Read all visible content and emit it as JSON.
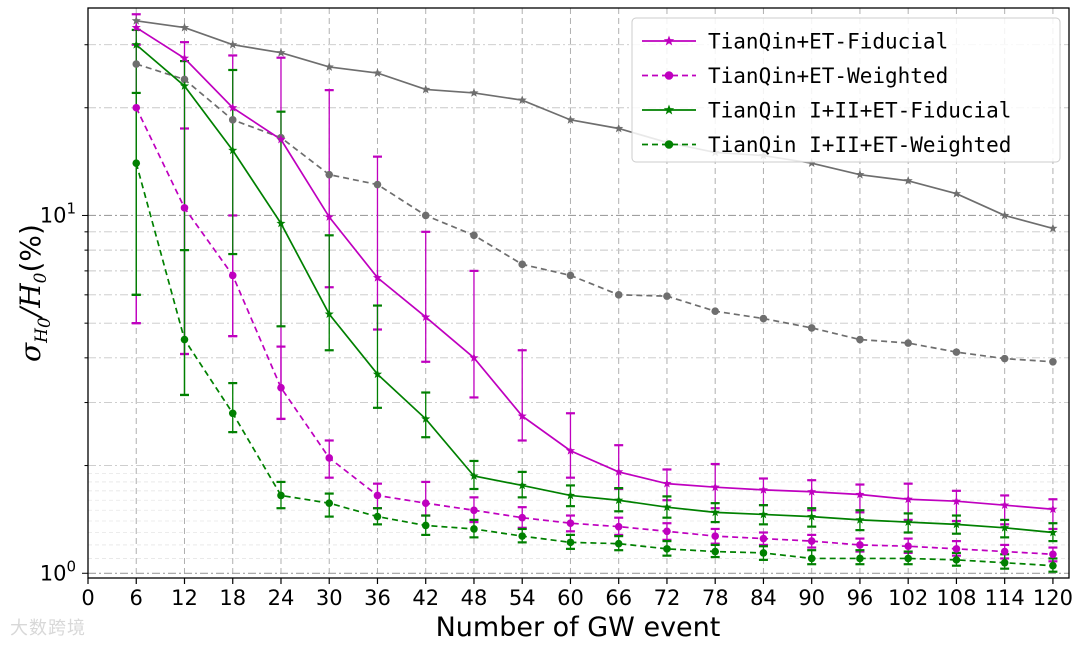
{
  "chart_data": {
    "type": "line",
    "y_scale": "log",
    "xlabel": "Number of GW event",
    "ylabel": {
      "symbol": "σ",
      "sub": "H",
      "subsub": "0",
      "rest": "/",
      "h": "H",
      "hsub": "0",
      "unit": "(%)"
    },
    "xlim": [
      0,
      122
    ],
    "ylim": [
      0.97,
      38
    ],
    "x_ticks": [
      0,
      6,
      12,
      18,
      24,
      30,
      36,
      42,
      48,
      54,
      60,
      66,
      72,
      78,
      84,
      90,
      96,
      102,
      108,
      114,
      120
    ],
    "y_ticks": [
      {
        "value": 1,
        "base": "10",
        "exp": "0"
      },
      {
        "value": 10,
        "base": "10",
        "exp": "1"
      }
    ],
    "grid": true,
    "legend_position": "top-right",
    "x": [
      6,
      12,
      18,
      24,
      30,
      36,
      42,
      48,
      54,
      60,
      66,
      72,
      78,
      84,
      90,
      96,
      102,
      108,
      114,
      120
    ],
    "series": [
      {
        "name": "TianQin+ET-Fiducial",
        "color": "#bf00bf",
        "style": "solid",
        "marker": "star",
        "legend": true,
        "values": [
          33.5,
          27.5,
          20.0,
          16.3,
          9.9,
          6.7,
          5.2,
          4.0,
          2.75,
          2.2,
          1.92,
          1.78,
          1.74,
          1.71,
          1.69,
          1.66,
          1.61,
          1.59,
          1.55,
          1.51
        ],
        "err_low": [
          5.0,
          4.1,
          4.6,
          2.7,
          6.3,
          4.8,
          3.9,
          3.1,
          2.35,
          1.85,
          1.72,
          1.6,
          1.52,
          1.55,
          1.5,
          1.48,
          1.41,
          1.4,
          1.37,
          1.33
        ],
        "err_high": [
          36.5,
          30.5,
          28.0,
          27.6,
          22.4,
          14.6,
          9.0,
          7.0,
          4.2,
          2.8,
          2.28,
          1.95,
          2.02,
          1.84,
          1.82,
          1.77,
          1.78,
          1.7,
          1.65,
          1.61
        ]
      },
      {
        "name": "TianQin+ET-Weighted",
        "color": "#bf00bf",
        "style": "dashed",
        "marker": "circle",
        "legend": true,
        "values": [
          20.0,
          10.5,
          6.8,
          3.3,
          2.1,
          1.65,
          1.57,
          1.5,
          1.43,
          1.38,
          1.35,
          1.31,
          1.27,
          1.25,
          1.23,
          1.2,
          1.19,
          1.17,
          1.15,
          1.13
        ],
        "err_low": [
          5.0,
          4.1,
          4.6,
          2.7,
          1.85,
          1.52,
          1.45,
          1.39,
          1.34,
          1.31,
          1.28,
          1.24,
          1.21,
          1.2,
          1.18,
          1.15,
          1.14,
          1.12,
          1.1,
          1.08
        ],
        "err_high": [
          30.0,
          17.5,
          10.0,
          4.3,
          2.35,
          1.78,
          1.8,
          1.63,
          1.53,
          1.45,
          1.43,
          1.38,
          1.33,
          1.3,
          1.28,
          1.25,
          1.25,
          1.23,
          1.2,
          1.18
        ]
      },
      {
        "name": "TianQin I+II+ET-Fiducial",
        "color": "#008000",
        "style": "solid",
        "marker": "star",
        "legend": true,
        "values": [
          30.0,
          23.0,
          15.2,
          9.5,
          5.3,
          3.6,
          2.7,
          1.87,
          1.76,
          1.65,
          1.6,
          1.53,
          1.48,
          1.46,
          1.44,
          1.41,
          1.39,
          1.37,
          1.34,
          1.3
        ],
        "err_low": [
          6.0,
          3.15,
          7.8,
          4.9,
          4.2,
          2.9,
          2.4,
          1.72,
          1.63,
          1.54,
          1.49,
          1.43,
          1.39,
          1.37,
          1.35,
          1.32,
          1.3,
          1.29,
          1.26,
          1.23
        ],
        "err_high": [
          33.0,
          27.0,
          25.5,
          19.5,
          8.8,
          5.6,
          3.2,
          2.06,
          1.92,
          1.76,
          1.73,
          1.64,
          1.57,
          1.55,
          1.52,
          1.5,
          1.47,
          1.45,
          1.41,
          1.38
        ]
      },
      {
        "name": "TianQin I+II+ET-Weighted",
        "color": "#008000",
        "style": "dashed",
        "marker": "circle",
        "legend": true,
        "values": [
          14.0,
          4.5,
          2.8,
          1.65,
          1.57,
          1.44,
          1.36,
          1.33,
          1.27,
          1.22,
          1.21,
          1.17,
          1.15,
          1.14,
          1.1,
          1.1,
          1.1,
          1.09,
          1.07,
          1.05
        ],
        "err_low": [
          6.0,
          3.15,
          2.48,
          1.52,
          1.44,
          1.37,
          1.28,
          1.26,
          1.22,
          1.17,
          1.16,
          1.12,
          1.11,
          1.09,
          1.06,
          1.06,
          1.06,
          1.05,
          1.03,
          1.01
        ],
        "err_high": [
          22.0,
          8.0,
          3.4,
          1.8,
          1.67,
          1.52,
          1.45,
          1.41,
          1.33,
          1.28,
          1.27,
          1.23,
          1.2,
          1.19,
          1.16,
          1.16,
          1.15,
          1.14,
          1.13,
          1.1
        ]
      },
      {
        "color": "#6e6e6e",
        "style": "solid",
        "marker": "star",
        "legend": false,
        "values": [
          35.0,
          33.5,
          30.0,
          28.5,
          26.0,
          25.0,
          22.5,
          22.0,
          21.0,
          18.5,
          17.5,
          16.0,
          15.0,
          14.7,
          14.0,
          13.0,
          12.5,
          11.5,
          10.0,
          9.2
        ]
      },
      {
        "color": "#6e6e6e",
        "style": "dashed",
        "marker": "circle",
        "legend": false,
        "values": [
          26.5,
          24.0,
          18.5,
          16.5,
          13.0,
          12.2,
          10.0,
          8.8,
          7.3,
          6.8,
          6.0,
          5.95,
          5.4,
          5.15,
          4.85,
          4.5,
          4.4,
          4.15,
          3.98,
          3.9
        ]
      }
    ]
  },
  "watermark": "大数跨境"
}
